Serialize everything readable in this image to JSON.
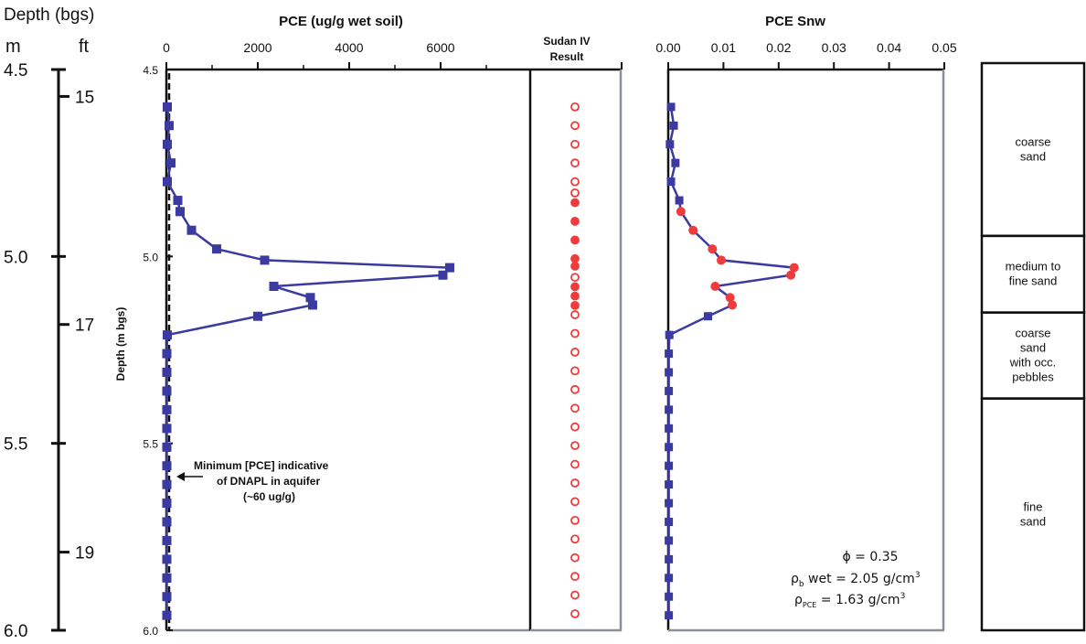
{
  "depth_axis": {
    "title": "Depth (bgs)",
    "unit_m": "m",
    "unit_ft": "ft",
    "m_ticks": [
      "4.5",
      "5.0",
      "5.5",
      "6.0"
    ],
    "ft_ticks": [
      "15",
      "17",
      "19"
    ],
    "ft_tick_depths_m": [
      4.572,
      5.182,
      5.791
    ]
  },
  "pce_panel": {
    "title": "PCE (ug/g wet soil)",
    "ylabel": "Depth (m bgs)",
    "xticks": [
      "0",
      "2000",
      "4000",
      "6000"
    ],
    "yticks": [
      "4.5",
      "5.0",
      "5.5",
      "6.0"
    ],
    "annotation": [
      "Minimum [PCE] indicative",
      "of DNAPL in aquifer",
      "(~60 ug/g)"
    ],
    "threshold": 60
  },
  "sudan_panel": {
    "title_line1": "Sudan IV",
    "title_line2": "Result"
  },
  "snw_panel": {
    "title": "PCE Snw",
    "xticks": [
      "0.00",
      "0.01",
      "0.02",
      "0.03",
      "0.04",
      "0.05"
    ],
    "properties": {
      "porosity": "ϕ = 0.35",
      "rho_b_symbol": "ρ",
      "rho_b_sub": "b",
      "rho_b_text": " wet = 2.05 g/cm",
      "rho_b_sup": "3",
      "rho_pce_symbol": "ρ",
      "rho_pce_sub": "PCE",
      "rho_pce_text": " = 1.63 g/cm",
      "rho_pce_sup": "3"
    }
  },
  "lithology": [
    {
      "label_lines": [
        "coarse",
        "sand"
      ],
      "top": 4.5,
      "bottom": 4.945
    },
    {
      "label_lines": [
        "medium to",
        "fine sand"
      ],
      "top": 4.945,
      "bottom": 5.15
    },
    {
      "label_lines": [
        "coarse",
        "sand",
        "with occ.",
        "pebbles"
      ],
      "top": 5.15,
      "bottom": 5.38
    },
    {
      "label_lines": [
        "fine",
        "sand"
      ],
      "top": 5.38,
      "bottom": 6.0
    }
  ],
  "colors": {
    "series": "#3a3aa0",
    "sudan_positive": "#ee3b3b",
    "axis": "#111111",
    "frame_gray": "#8a8f96"
  },
  "chart_data": [
    {
      "type": "line",
      "title": "PCE (ug/g wet soil)",
      "xlabel": "",
      "ylabel": "Depth (m bgs)",
      "xlim": [
        0,
        7000
      ],
      "ylim": [
        6.0,
        4.5
      ],
      "series": [
        {
          "depth": [
            4.6,
            4.65,
            4.7,
            4.75,
            4.8,
            4.85,
            4.88,
            4.93,
            4.98,
            5.01,
            5.03,
            5.05,
            5.08,
            5.11,
            5.13,
            5.16,
            5.21,
            5.26,
            5.31,
            5.36,
            5.41,
            5.46,
            5.51,
            5.56,
            5.61,
            5.66,
            5.71,
            5.76,
            5.81,
            5.86,
            5.91,
            5.96
          ],
          "values": [
            20,
            60,
            20,
            100,
            20,
            250,
            300,
            550,
            1100,
            2150,
            6200,
            6050,
            2350,
            3150,
            3200,
            2000,
            20,
            10,
            10,
            10,
            10,
            10,
            10,
            10,
            10,
            10,
            10,
            10,
            10,
            10,
            10,
            10
          ]
        }
      ]
    },
    {
      "type": "scatter",
      "title": "Sudan IV Result",
      "ylim": [
        6.0,
        4.5
      ],
      "series": [
        {
          "depth": [
            4.6,
            4.65,
            4.7,
            4.75,
            4.8,
            4.83,
            4.856,
            4.906,
            4.956,
            5.006,
            5.026,
            5.056,
            5.081,
            5.106,
            5.131,
            5.156,
            5.206,
            5.256,
            5.306,
            5.356,
            5.406,
            5.456,
            5.506,
            5.556,
            5.606,
            5.656,
            5.706,
            5.756,
            5.806,
            5.856,
            5.906,
            5.956
          ],
          "result": [
            "negative",
            "negative",
            "negative",
            "negative",
            "negative",
            "negative",
            "positive",
            "positive",
            "positive",
            "positive",
            "positive",
            "negative",
            "positive",
            "positive",
            "positive",
            "negative",
            "negative",
            "negative",
            "negative",
            "negative",
            "negative",
            "negative",
            "negative",
            "negative",
            "negative",
            "negative",
            "negative",
            "negative",
            "negative",
            "negative",
            "negative",
            "negative"
          ]
        }
      ]
    },
    {
      "type": "line",
      "title": "PCE Snw",
      "xlim": [
        0,
        0.05
      ],
      "ylim": [
        6.0,
        4.5
      ],
      "series": [
        {
          "depth": [
            4.6,
            4.65,
            4.7,
            4.75,
            4.8,
            4.85,
            4.88,
            4.93,
            4.98,
            5.01,
            5.03,
            5.05,
            5.08,
            5.11,
            5.13,
            5.16,
            5.21,
            5.26,
            5.31,
            5.36,
            5.41,
            5.46,
            5.51,
            5.56,
            5.61,
            5.66,
            5.71,
            5.76,
            5.81,
            5.86,
            5.91,
            5.96
          ],
          "values": [
            0.0005,
            0.001,
            0.0003,
            0.0013,
            0.0005,
            0.002,
            0.0023,
            0.0045,
            0.008,
            0.0096,
            0.0228,
            0.0222,
            0.0085,
            0.0112,
            0.0116,
            0.0072,
            0.0002,
            0.0001,
            0.0001,
            0.0001,
            0.0001,
            0.0001,
            0.0001,
            0.0001,
            0.0001,
            0.0001,
            0.0001,
            0.0001,
            0.0001,
            0.0001,
            0.0001,
            0.0001
          ],
          "highlighted_depths": [
            4.88,
            4.93,
            4.98,
            5.01,
            5.03,
            5.05,
            5.08,
            5.11,
            5.13
          ]
        }
      ]
    }
  ]
}
